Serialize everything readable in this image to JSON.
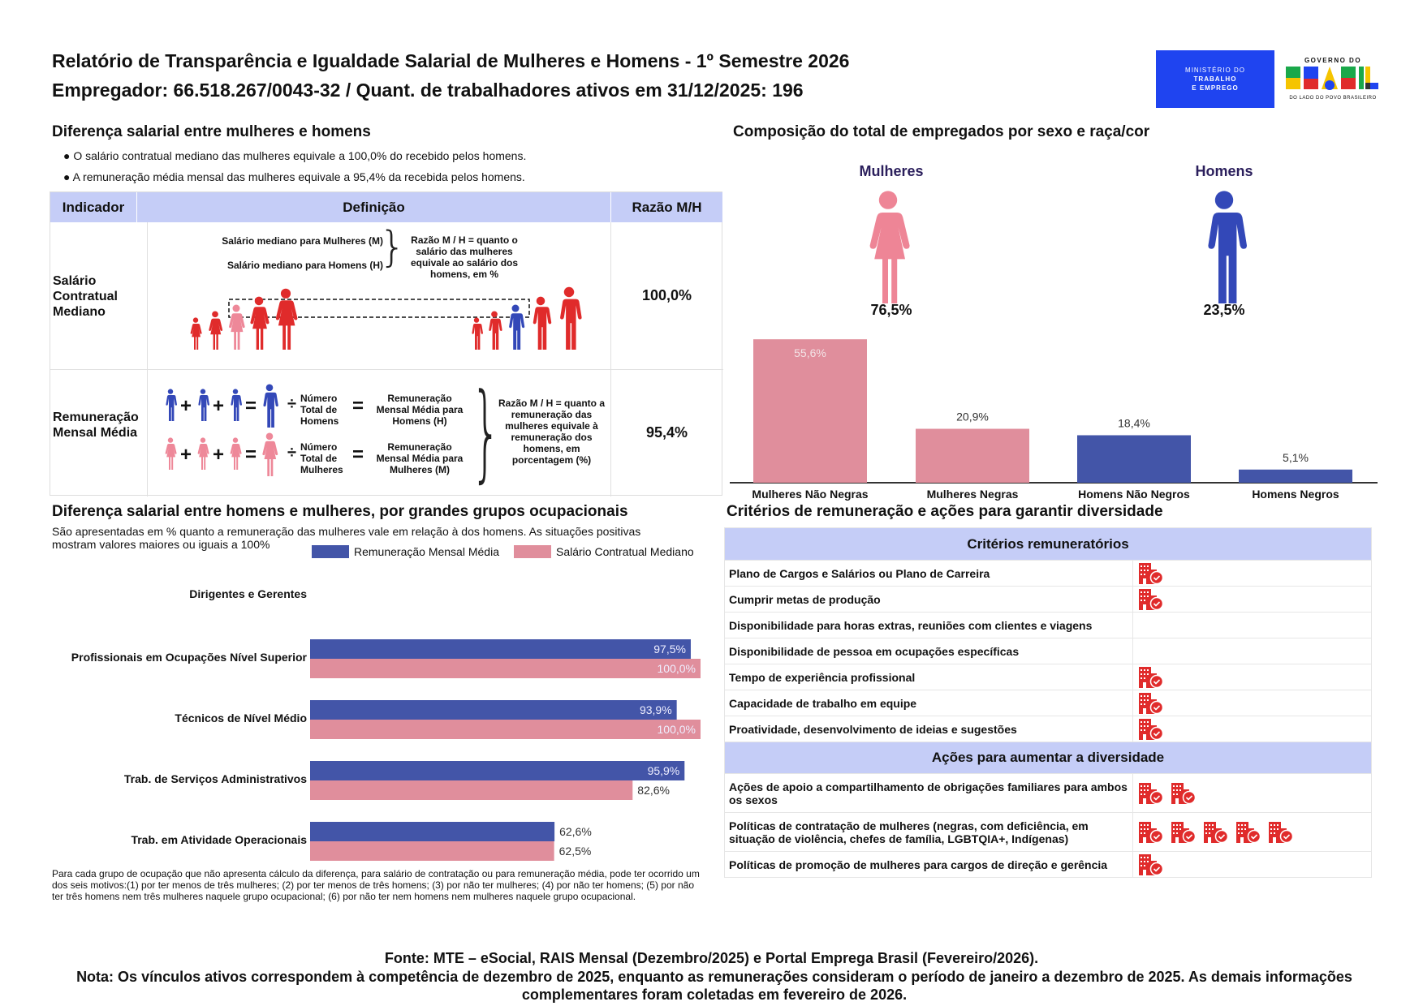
{
  "header": {
    "title_line1": "Relatório de Transparência e Igualdade Salarial de Mulheres e Homens - 1º Semestre 2026",
    "title_line2": "Empregador: 66.518.267/0043-32 / Quant. de trabalhadores ativos em 31/12/2025: 196",
    "logo_ministry": [
      "MINISTÉRIO DO",
      "TRABALHO",
      "E EMPREGO"
    ],
    "logo_gov_top": "GOVERNO DO",
    "logo_gov_main": "BRASIL",
    "logo_gov_bottom": "DO LADO DO POVO BRASILEIRO"
  },
  "salary_gap": {
    "heading": "Diferença salarial entre mulheres e homens",
    "bullets": [
      "● O salário contratual mediano das mulheres equivale a 100,0% do recebido pelos homens.",
      "● A remuneração média mensal das mulheres equivale a 95,4% da recebida pelos homens."
    ],
    "table": {
      "headers": [
        "Indicador",
        "Definição",
        "Razão M/H"
      ],
      "row1": {
        "indicator": [
          "Salário",
          "Contratual",
          "Mediano"
        ],
        "def_women": "Salário mediano para Mulheres (M)",
        "def_men": "Salário mediano para Homens (H)",
        "ratio_text": "Razão M / H = quanto o salário das mulheres equivale ao salário dos homens, em %",
        "value": "100,0%"
      },
      "row2": {
        "indicator": [
          "Remuneração",
          "Mensal Média"
        ],
        "plus": "+",
        "equals": "=",
        "divide": "÷",
        "total_men": "Número Total de Homens",
        "total_women": "Número Total de Mulheres",
        "avg_men": "Remuneração Mensal Média para Homens (H)",
        "avg_women": "Remuneração Mensal Média para Mulheres (M)",
        "ratio_text": "Razão M / H = quanto a remuneração das mulheres equivale à remuneração dos homens, em porcentagem (%)",
        "value": "95,4%"
      }
    }
  },
  "composition": {
    "heading": "Composição do total de empregados por sexo e raça/cor",
    "women_label": "Mulheres",
    "women_pct": "76,5%",
    "men_label": "Homens",
    "men_pct": "23,5%"
  },
  "occupational": {
    "heading": "Diferença salarial entre homens e mulheres, por grandes grupos ocupacionais",
    "subtitle": "São apresentadas em % quanto a remuneração das mulheres vale em relação à dos homens. As situações positivas mostram valores maiores ou iguais a 100%",
    "footnote": "Para cada grupo de ocupação que não apresenta cálculo da diferença, para salário de contratação ou para remuneração média, pode ter ocorrido um dos seis motivos:(1) por ter menos de três mulheres; (2) por ter menos de três homens; (3) por não ter mulheres; (4) por não ter homens; (5) por não ter três homens nem três mulheres naquele grupo ocupacional; (6) por não ter nem homens nem mulheres naquele grupo ocupacional."
  },
  "chart_data": [
    {
      "type": "bar",
      "orientation": "vertical",
      "categories": [
        "Mulheres Não Negras",
        "Mulheres Negras",
        "Homens Não Negros",
        "Homens Negros"
      ],
      "values": [
        55.6,
        20.9,
        18.4,
        5.1
      ],
      "labels": [
        "55,6%",
        "20,9%",
        "18,4%",
        "5,1%"
      ],
      "colors": [
        "#e08e9c",
        "#e08e9c",
        "#4355a8",
        "#4355a8"
      ],
      "grid": false
    },
    {
      "type": "bar",
      "orientation": "horizontal",
      "categories": [
        "Dirigentes e Gerentes",
        "Profissionais em Ocupações Nível Superior",
        "Técnicos de Nível Médio",
        "Trab. de Serviços Administrativos",
        "Trab. em Atividade Operacionais"
      ],
      "series": [
        {
          "name": "Remuneração Mensal Média",
          "color": "#4355a8",
          "values": [
            null,
            97.5,
            93.9,
            95.9,
            62.6
          ],
          "labels": [
            null,
            "97,5%",
            "93,9%",
            "95,9%",
            "62,6%"
          ]
        },
        {
          "name": "Salário Contratual Mediano",
          "color": "#e08e9c",
          "values": [
            null,
            100.0,
            100.0,
            82.6,
            62.5
          ],
          "labels": [
            null,
            "100,0%",
            "100,0%",
            "82,6%",
            "62,5%"
          ]
        }
      ],
      "xlim": [
        0,
        100
      ],
      "legend": "top-right",
      "grid": false
    }
  ],
  "criteria": {
    "heading": "Critérios de remuneração e ações para garantir diversidade",
    "section1": "Critérios remuneratórios",
    "items1": [
      {
        "label": "Plano de Cargos e Salários ou Plano de Carreira",
        "icons": 1
      },
      {
        "label": "Cumprir metas de produção",
        "icons": 1
      },
      {
        "label": "Disponibilidade para horas extras, reuniões com clientes e viagens",
        "icons": 0
      },
      {
        "label": "Disponibilidade de pessoa em ocupações específicas",
        "icons": 0
      },
      {
        "label": "Tempo de experiência profissional",
        "icons": 1
      },
      {
        "label": "Capacidade de trabalho em equipe",
        "icons": 1
      },
      {
        "label": "Proatividade, desenvolvimento de ideias e sugestões",
        "icons": 1
      }
    ],
    "section2": "Ações para aumentar a diversidade",
    "items2": [
      {
        "label": "Ações de apoio a compartilhamento de obrigações familiares para ambos os sexos",
        "icons": 2
      },
      {
        "label": "Políticas de contratação de mulheres (negras, com deficiência, em situação de violência, chefes de família, LGBTQIA+, Indígenas)",
        "icons": 5
      },
      {
        "label": "Políticas de promoção de mulheres para cargos de direção e gerência",
        "icons": 1
      }
    ],
    "icon": "building-check-icon",
    "icon_color": "#e02b2b"
  },
  "footer": {
    "source": "Fonte: MTE – eSocial, RAIS Mensal (Dezembro/2025) e Portal Emprega Brasil (Fevereiro/2026).",
    "note": "Nota: Os vínculos ativos correspondem à competência de dezembro de 2025, enquanto as remunerações consideram o período de janeiro a dezembro de 2025. As demais informações complementares foram coletadas em fevereiro de 2026."
  }
}
